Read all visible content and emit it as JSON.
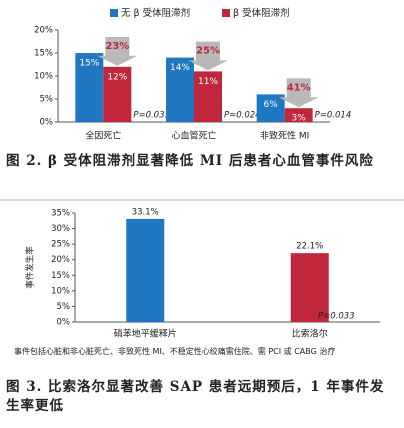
{
  "chart_data": [
    {
      "type": "bar",
      "categories": [
        "全因死亡",
        "心血管死亡",
        "非致死性 MI"
      ],
      "series": [
        {
          "name": "无 β 受体阻滞剂",
          "color": "#1f78c1",
          "values": [
            15,
            14,
            6
          ],
          "value_labels": [
            "15%",
            "14%",
            "6%"
          ]
        },
        {
          "name": "β 受体阻滞剂",
          "color": "#c0273a",
          "values": [
            12,
            11,
            3
          ],
          "value_labels": [
            "12%",
            "11%",
            "3%"
          ]
        }
      ],
      "annotations": [
        "23%",
        "25%",
        "41%"
      ],
      "p_values": [
        "P=0.031",
        "P=0.024",
        "P=0.014"
      ],
      "ylim": [
        0,
        20
      ],
      "yticks": [
        {
          "value": 0,
          "label": "0%"
        },
        {
          "value": 5,
          "label": "5%"
        },
        {
          "value": 10,
          "label": "10%"
        },
        {
          "value": 15,
          "label": "15%"
        },
        {
          "value": 20,
          "label": "20%"
        }
      ]
    },
    {
      "type": "bar",
      "ylabel": "事件发生率",
      "categories": [
        "硝苯地平缓释片",
        "比索洛尔"
      ],
      "values": [
        33.1,
        22.1
      ],
      "value_labels": [
        "33.1%",
        "22.1%"
      ],
      "colors": [
        "#1f78c1",
        "#c0273a"
      ],
      "p_value": "P=0.033",
      "ylim": [
        0,
        35
      ],
      "yticks": [
        {
          "value": 0,
          "label": "0%"
        },
        {
          "value": 5,
          "label": "5%"
        },
        {
          "value": 10,
          "label": "10%"
        },
        {
          "value": 15,
          "label": "15%"
        },
        {
          "value": 20,
          "label": "20%"
        },
        {
          "value": 25,
          "label": "25%"
        },
        {
          "value": 30,
          "label": "30%"
        },
        {
          "value": 35,
          "label": "35%"
        }
      ]
    }
  ],
  "captions": [
    "图 2. β 受体阻滞剂显著降低 MI 后患者心血管事件风险",
    "图 3. 比索洛尔显著改善 SAP 患者远期预后，1 年事件发生率更低"
  ],
  "footnote": "事件包括心脏和非心脏死亡、非致死性 MI、不稳定性心绞痛需住院、需 PCI 或 CABG 治疗"
}
